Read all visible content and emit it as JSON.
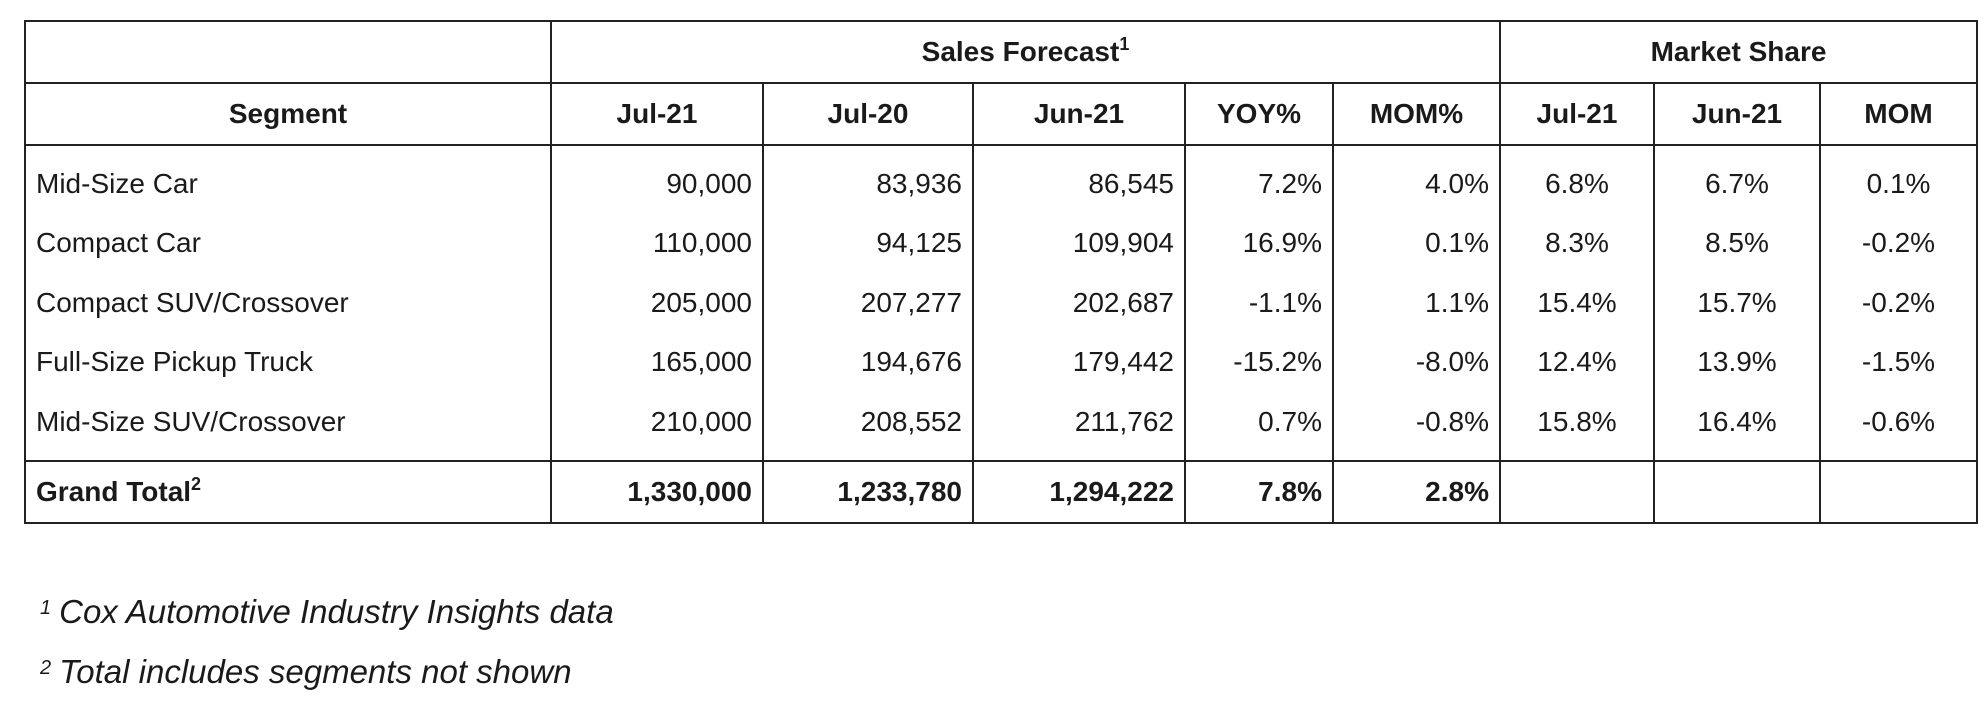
{
  "header": {
    "group_sales": "Sales Forecast",
    "group_sales_note": "1",
    "group_market": "Market Share",
    "columns": [
      "Segment",
      "Jul-21",
      "Jul-20",
      "Jun-21",
      "YOY%",
      "MOM%",
      "Jul-21",
      "Jun-21",
      "MOM"
    ]
  },
  "rows": [
    {
      "segment": "Mid-Size Car",
      "jul21": "90,000",
      "jul20": "83,936",
      "jun21": "86,545",
      "yoy": "7.2%",
      "mom": "4.0%",
      "ms_jul21": "6.8%",
      "ms_jun21": "6.7%",
      "ms_mom": "0.1%"
    },
    {
      "segment": "Compact Car",
      "jul21": "110,000",
      "jul20": "94,125",
      "jun21": "109,904",
      "yoy": "16.9%",
      "mom": "0.1%",
      "ms_jul21": "8.3%",
      "ms_jun21": "8.5%",
      "ms_mom": "-0.2%"
    },
    {
      "segment": "Compact SUV/Crossover",
      "jul21": "205,000",
      "jul20": "207,277",
      "jun21": "202,687",
      "yoy": "-1.1%",
      "mom": "1.1%",
      "ms_jul21": "15.4%",
      "ms_jun21": "15.7%",
      "ms_mom": "-0.2%"
    },
    {
      "segment": "Full-Size Pickup Truck",
      "jul21": "165,000",
      "jul20": "194,676",
      "jun21": "179,442",
      "yoy": "-15.2%",
      "mom": "-8.0%",
      "ms_jul21": "12.4%",
      "ms_jun21": "13.9%",
      "ms_mom": "-1.5%"
    },
    {
      "segment": "Mid-Size SUV/Crossover",
      "jul21": "210,000",
      "jul20": "208,552",
      "jun21": "211,762",
      "yoy": "0.7%",
      "mom": "-0.8%",
      "ms_jul21": "15.8%",
      "ms_jun21": "16.4%",
      "ms_mom": "-0.6%"
    }
  ],
  "total": {
    "label": "Grand Total",
    "label_note": "2",
    "jul21": "1,330,000",
    "jul20": "1,233,780",
    "jun21": "1,294,222",
    "yoy": "7.8%",
    "mom": "2.8%",
    "ms_jul21": "",
    "ms_jun21": "",
    "ms_mom": ""
  },
  "footnotes": [
    {
      "mark": "1",
      "text": "Cox Automotive Industry Insights data"
    },
    {
      "mark": "2",
      "text": "Total includes segments not shown"
    }
  ]
}
